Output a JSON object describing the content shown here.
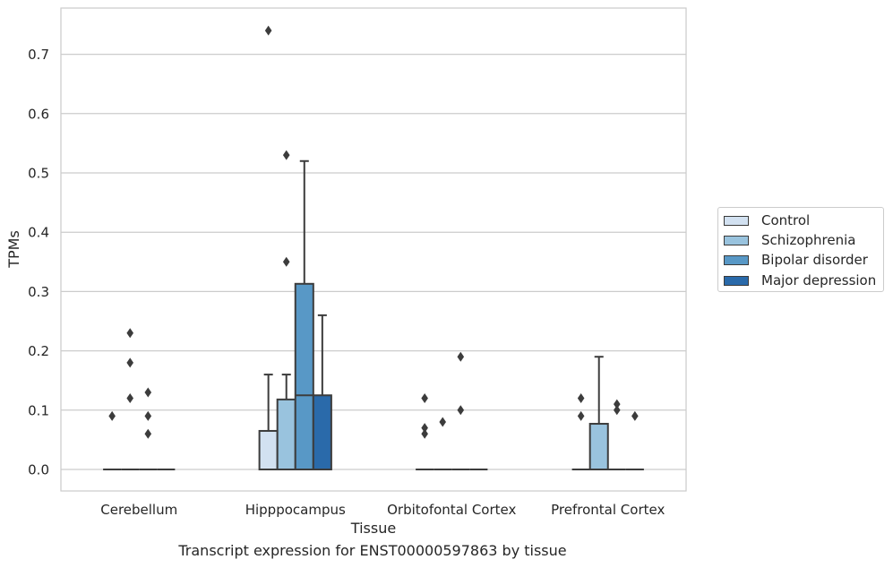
{
  "chart_data": {
    "type": "boxplot",
    "xlabel": "Tissue",
    "ylabel": "TPMs",
    "caption": "Transcript expression for ENST00000597863 by tissue",
    "ylim": [
      -0.036,
      0.78
    ],
    "yticks": [
      "0.0",
      "0.1",
      "0.2",
      "0.3",
      "0.4",
      "0.5",
      "0.6",
      "0.7"
    ],
    "grid": "horizontal",
    "legend_position": "right",
    "categories": [
      "Cerebellum",
      "Hipppocampus",
      "Orbitofontal Cortex",
      "Prefrontal Cortex"
    ],
    "series": [
      {
        "name": "Control",
        "color": "#d2e1f1",
        "boxes": [
          {
            "q1": 0,
            "median": 0,
            "q3": 0,
            "whislo": 0,
            "whishi": 0,
            "outliers": [
              0.09
            ]
          },
          {
            "q1": 0,
            "median": 0,
            "q3": 0.065,
            "whislo": 0,
            "whishi": 0.16,
            "outliers": [
              0.74
            ]
          },
          {
            "q1": 0,
            "median": 0,
            "q3": 0,
            "whislo": 0,
            "whishi": 0,
            "outliers": [
              0.12,
              0.07,
              0.06
            ]
          },
          {
            "q1": 0,
            "median": 0,
            "q3": 0,
            "whislo": 0,
            "whishi": 0,
            "outliers": [
              0.12,
              0.09
            ]
          }
        ]
      },
      {
        "name": "Schizophrenia",
        "color": "#99c3de",
        "boxes": [
          {
            "q1": 0,
            "median": 0,
            "q3": 0,
            "whislo": 0,
            "whishi": 0,
            "outliers": [
              0.23,
              0.18,
              0.12
            ]
          },
          {
            "q1": 0,
            "median": 0,
            "q3": 0.118,
            "whislo": 0,
            "whishi": 0.16,
            "outliers": [
              0.53,
              0.35
            ]
          },
          {
            "q1": 0,
            "median": 0,
            "q3": 0,
            "whislo": 0,
            "whishi": 0,
            "outliers": [
              0.08
            ]
          },
          {
            "q1": 0,
            "median": 0,
            "q3": 0.077,
            "whislo": 0,
            "whishi": 0.19,
            "outliers": []
          }
        ]
      },
      {
        "name": "Bipolar disorder",
        "color": "#5898c6",
        "boxes": [
          {
            "q1": 0,
            "median": 0,
            "q3": 0,
            "whislo": 0,
            "whishi": 0,
            "outliers": [
              0.13,
              0.09,
              0.06
            ]
          },
          {
            "q1": 0,
            "median": 0.125,
            "q3": 0.313,
            "whislo": 0,
            "whishi": 0.52,
            "outliers": []
          },
          {
            "q1": 0,
            "median": 0,
            "q3": 0,
            "whislo": 0,
            "whishi": 0,
            "outliers": [
              0.19,
              0.1
            ]
          },
          {
            "q1": 0,
            "median": 0,
            "q3": 0,
            "whislo": 0,
            "whishi": 0,
            "outliers": [
              0.11,
              0.1
            ]
          }
        ]
      },
      {
        "name": "Major depression",
        "color": "#2a6aaa",
        "boxes": [
          {
            "q1": 0,
            "median": 0,
            "q3": 0,
            "whislo": 0,
            "whishi": 0,
            "outliers": []
          },
          {
            "q1": 0,
            "median": 0,
            "q3": 0.125,
            "whislo": 0,
            "whishi": 0.26,
            "outliers": []
          },
          {
            "q1": 0,
            "median": 0,
            "q3": 0,
            "whislo": 0,
            "whishi": 0,
            "outliers": []
          },
          {
            "q1": 0,
            "median": 0,
            "q3": 0,
            "whislo": 0,
            "whishi": 0,
            "outliers": [
              0.09
            ]
          }
        ]
      }
    ]
  }
}
